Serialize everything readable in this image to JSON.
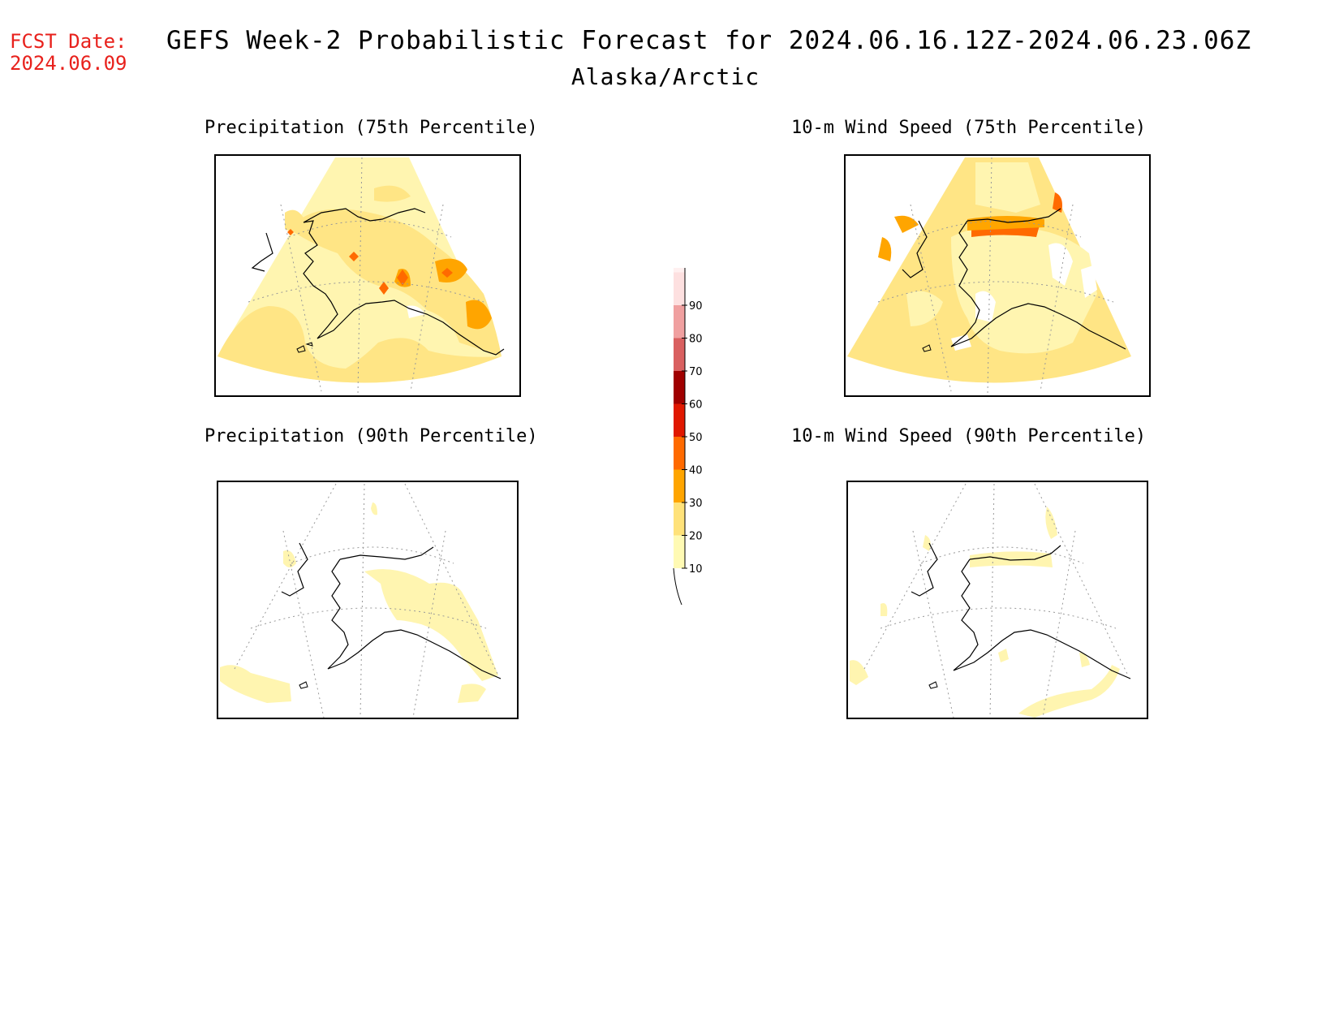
{
  "header": {
    "fcst_label": "FCST Date:",
    "fcst_date": "2024.06.09",
    "title": "GEFS Week-2 Probabilistic Forecast for 2024.06.16.12Z-2024.06.23.06Z",
    "region": "Alaska/Arctic"
  },
  "panels": [
    {
      "title": "Precipitation (75th Percentile)"
    },
    {
      "title": "10-m Wind Speed (75th Percentile)"
    },
    {
      "title": "Precipitation (90th Percentile)"
    },
    {
      "title": "10-m Wind Speed (90th Percentile)"
    }
  ],
  "colorbar": {
    "levels": [
      "10",
      "20",
      "30",
      "40",
      "50",
      "60",
      "70",
      "80",
      "90"
    ],
    "colors": [
      "#fffab4",
      "#ffe27a",
      "#ffa500",
      "#ff6a00",
      "#e01800",
      "#a00000",
      "#d96060",
      "#f0a0a0",
      "#fde0e0",
      "#fff0f0"
    ]
  }
}
